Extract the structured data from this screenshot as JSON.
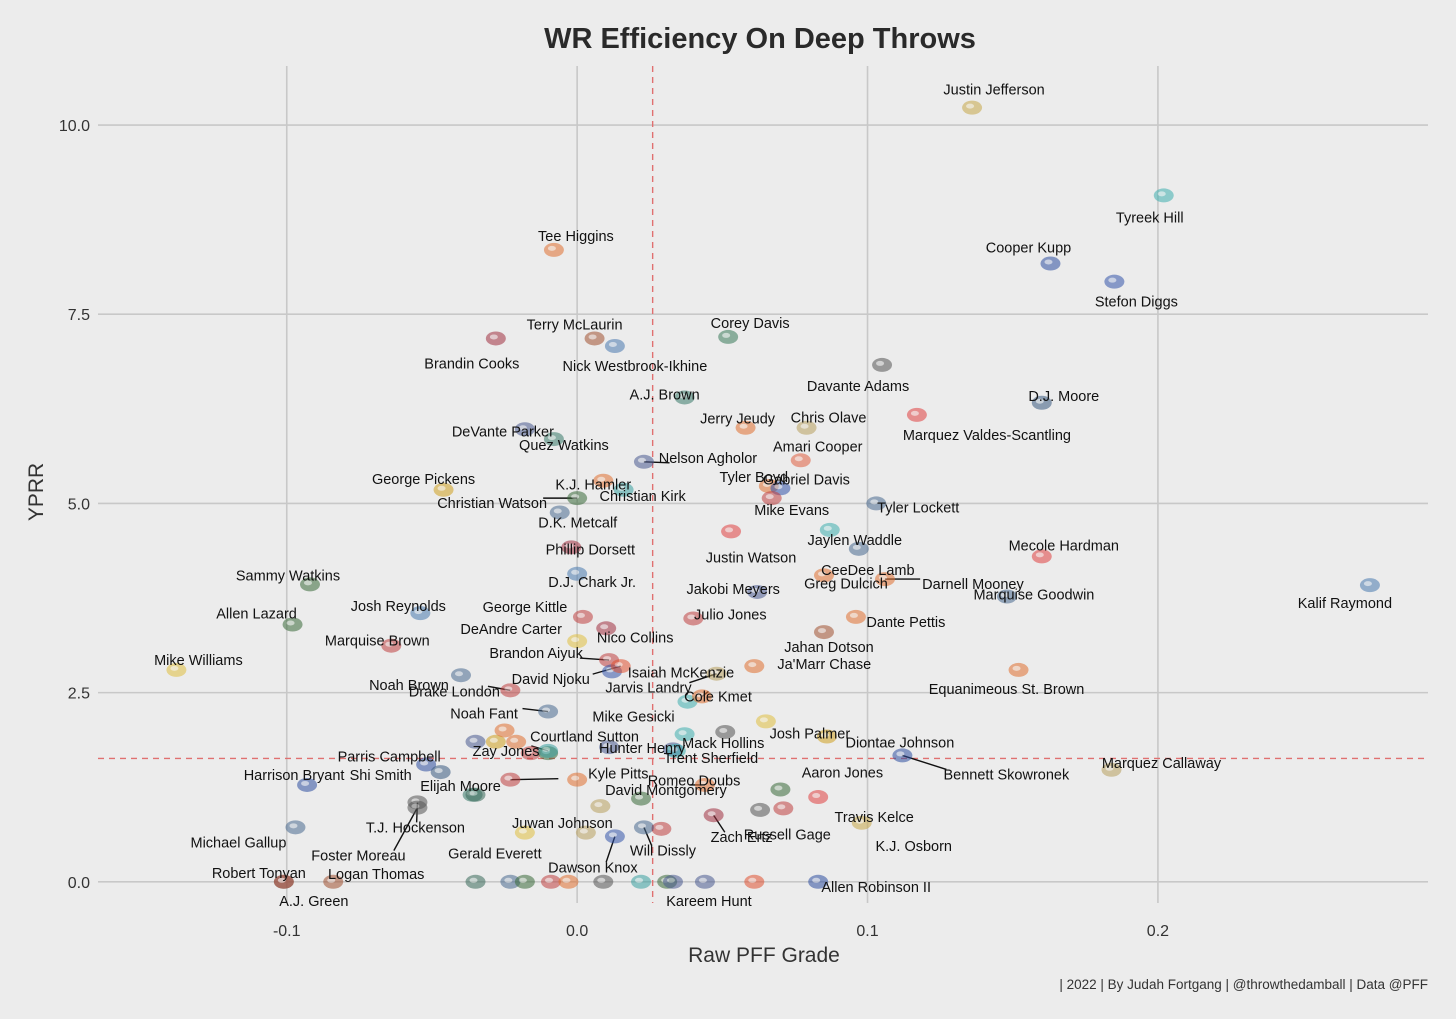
{
  "chart_data": {
    "type": "scatter",
    "title": "WR Efficiency On Deep Throws",
    "xlabel": "Raw PFF Grade",
    "ylabel": "YPRR",
    "caption": "| 2022 | By Judah Fortgang | @throwthedamball | Data @PFF",
    "xlim": [
      -0.165,
      0.293
    ],
    "ylim": [
      -0.28,
      10.78
    ],
    "x_ticks": [
      -0.1,
      0.0,
      0.1,
      0.2
    ],
    "x_tick_labels": [
      "-0.1",
      "0.0",
      "0.1",
      "0.2"
    ],
    "y_ticks": [
      0.0,
      2.5,
      5.0,
      7.5,
      10.0
    ],
    "y_tick_labels": [
      "0.0",
      "2.5",
      "5.0",
      "7.5",
      "10.0"
    ],
    "grid": true,
    "ref_lines": {
      "x": 0.026,
      "y": 1.63
    },
    "points": [
      {
        "name": "Justin Jefferson",
        "x": 0.136,
        "y": 10.23,
        "color": "#c7a84a"
      },
      {
        "name": "Tyreek Hill",
        "x": 0.202,
        "y": 9.07,
        "color": "#3fb0b0"
      },
      {
        "name": "Cooper Kupp",
        "x": 0.163,
        "y": 8.17,
        "color": "#2f4fa0"
      },
      {
        "name": "Stefon Diggs",
        "x": 0.185,
        "y": 7.93,
        "color": "#3355aa"
      },
      {
        "name": "Tee Higgins",
        "x": -0.008,
        "y": 8.35,
        "color": "#e07030"
      },
      {
        "name": "Terry McLaurin",
        "x": 0.006,
        "y": 7.18,
        "color": "#a05030"
      },
      {
        "name": "Brandin Cooks",
        "x": -0.028,
        "y": 7.18,
        "color": "#a03040"
      },
      {
        "name": "Nick Westbrook-Ikhine",
        "x": 0.013,
        "y": 7.08,
        "color": "#4a78b0"
      },
      {
        "name": "Corey Davis",
        "x": 0.052,
        "y": 7.2,
        "color": "#3a7a5a"
      },
      {
        "name": "Davante Adams",
        "x": 0.105,
        "y": 6.83,
        "color": "#555555"
      },
      {
        "name": "A.J. Brown",
        "x": 0.037,
        "y": 6.4,
        "color": "#3a7a6a"
      },
      {
        "name": "D.J. Moore",
        "x": 0.16,
        "y": 6.33,
        "color": "#3a5a80"
      },
      {
        "name": "Jerry Jeudy",
        "x": 0.058,
        "y": 6.0,
        "color": "#e07030"
      },
      {
        "name": "Chris Olave",
        "x": 0.079,
        "y": 6.0,
        "color": "#b8a060"
      },
      {
        "name": "Marquez Valdes-Scantling",
        "x": 0.117,
        "y": 6.17,
        "color": "#e04040"
      },
      {
        "name": "DeVante Parker",
        "x": -0.018,
        "y": 5.98,
        "color": "#4a5a90"
      },
      {
        "name": "Quez Watkins",
        "x": -0.008,
        "y": 5.85,
        "color": "#3a7a6a"
      },
      {
        "name": "Nelson Agholor",
        "x": 0.023,
        "y": 5.55,
        "color": "#4a5a90"
      },
      {
        "name": "Amari Cooper",
        "x": 0.077,
        "y": 5.57,
        "color": "#e06040"
      },
      {
        "name": "K.J. Hamler",
        "x": 0.009,
        "y": 5.3,
        "color": "#e07030"
      },
      {
        "name": "Christian Kirk",
        "x": 0.016,
        "y": 5.18,
        "color": "#3aa0a0"
      },
      {
        "name": "Tyler Boyd",
        "x": 0.066,
        "y": 5.23,
        "color": "#e07030"
      },
      {
        "name": "Gabriel Davis",
        "x": 0.07,
        "y": 5.2,
        "color": "#3355aa"
      },
      {
        "name": "Mike Evans",
        "x": 0.067,
        "y": 5.07,
        "color": "#c04040"
      },
      {
        "name": "George Pickens",
        "x": -0.046,
        "y": 5.18,
        "color": "#d0a020"
      },
      {
        "name": "Christian Watson",
        "x": 0.0,
        "y": 5.07,
        "color": "#3a6a3a"
      },
      {
        "name": "Tyler Lockett",
        "x": 0.103,
        "y": 5.0,
        "color": "#4a6a90"
      },
      {
        "name": "D.K. Metcalf",
        "x": -0.006,
        "y": 4.88,
        "color": "#4a6a90"
      },
      {
        "name": "Jaylen Waddle",
        "x": 0.087,
        "y": 4.65,
        "color": "#3fb0b0"
      },
      {
        "name": "Justin Watson",
        "x": 0.053,
        "y": 4.63,
        "color": "#e04040"
      },
      {
        "name": "Phillip Dorsett",
        "x": -0.002,
        "y": 4.42,
        "color": "#a03040"
      },
      {
        "name": "Mecole Hardman",
        "x": 0.16,
        "y": 4.3,
        "color": "#e04040"
      },
      {
        "name": "CeeDee Lamb",
        "x": 0.097,
        "y": 4.4,
        "color": "#4a6a90"
      },
      {
        "name": "Darnell Mooney",
        "x": 0.106,
        "y": 4.0,
        "color": "#e07030"
      },
      {
        "name": "D.J. Chark Jr.",
        "x": 0.0,
        "y": 4.07,
        "color": "#4a7ab0"
      },
      {
        "name": "Jakobi Meyers",
        "x": 0.062,
        "y": 3.83,
        "color": "#4a5a90"
      },
      {
        "name": "Greg Dulcich",
        "x": 0.085,
        "y": 4.05,
        "color": "#e07030"
      },
      {
        "name": "Sammy Watkins",
        "x": -0.092,
        "y": 3.93,
        "color": "#3a6a3a"
      },
      {
        "name": "Kalif Raymond",
        "x": 0.273,
        "y": 3.92,
        "color": "#4a7ab0"
      },
      {
        "name": "Josh Reynolds",
        "x": -0.054,
        "y": 3.55,
        "color": "#4a7ab0"
      },
      {
        "name": "Allen Lazard",
        "x": -0.098,
        "y": 3.4,
        "color": "#3a6a3a"
      },
      {
        "name": "George Kittle",
        "x": 0.002,
        "y": 3.5,
        "color": "#c04040"
      },
      {
        "name": "Nico Collins",
        "x": 0.01,
        "y": 3.35,
        "color": "#a03040"
      },
      {
        "name": "Julio Jones",
        "x": 0.04,
        "y": 3.48,
        "color": "#c04040"
      },
      {
        "name": "Marquise Goodwin",
        "x": 0.148,
        "y": 3.77,
        "color": "#4a6a90"
      },
      {
        "name": "Dante Pettis",
        "x": 0.096,
        "y": 3.5,
        "color": "#e07030"
      },
      {
        "name": "Marquise Brown",
        "x": -0.064,
        "y": 3.12,
        "color": "#c04040"
      },
      {
        "name": "DeAndre Carter",
        "x": 0.0,
        "y": 3.18,
        "color": "#e0c040"
      },
      {
        "name": "Jahan Dotson",
        "x": 0.085,
        "y": 3.3,
        "color": "#a05030"
      },
      {
        "name": "Mike Williams",
        "x": -0.138,
        "y": 2.8,
        "color": "#e0c040"
      },
      {
        "name": "Noah Brown",
        "x": -0.04,
        "y": 2.73,
        "color": "#4a6a90"
      },
      {
        "name": "Brandon Aiyuk",
        "x": 0.011,
        "y": 2.93,
        "color": "#c04040"
      },
      {
        "name": "Isaiah McKenzie",
        "x": 0.012,
        "y": 2.78,
        "color": "#3355aa"
      },
      {
        "name": "Ja'Marr Chase",
        "x": 0.061,
        "y": 2.85,
        "color": "#e07030"
      },
      {
        "name": "David Njoku",
        "x": 0.015,
        "y": 2.85,
        "color": "#e05030"
      },
      {
        "name": "Jarvis Landry",
        "x": 0.048,
        "y": 2.75,
        "color": "#b8a060"
      },
      {
        "name": "Drake London",
        "x": -0.023,
        "y": 2.53,
        "color": "#c04040"
      },
      {
        "name": "Equanimeous St. Brown",
        "x": 0.152,
        "y": 2.8,
        "color": "#e07030"
      },
      {
        "name": "Mike Gesicki",
        "x": 0.038,
        "y": 2.38,
        "color": "#3fb0b0"
      },
      {
        "name": "Cole Kmet",
        "x": 0.043,
        "y": 2.45,
        "color": "#e07030"
      },
      {
        "name": "Noah Fant",
        "x": -0.01,
        "y": 2.25,
        "color": "#4a6a90"
      },
      {
        "name": "Josh Palmer",
        "x": 0.065,
        "y": 2.12,
        "color": "#e0c040"
      },
      {
        "name": "Courtland Sutton",
        "x": -0.025,
        "y": 2.0,
        "color": "#e07030"
      },
      {
        "name": "Mack Hollins",
        "x": 0.051,
        "y": 1.98,
        "color": "#555555"
      },
      {
        "name": "Diontae Johnson",
        "x": 0.086,
        "y": 1.92,
        "color": "#d0a020"
      },
      {
        "name": "Trent Sherfield",
        "x": 0.034,
        "y": 1.73,
        "color": "#3fb0b0"
      },
      {
        "name": "Zay Jones",
        "x": -0.01,
        "y": 1.73,
        "color": "#3aa0a0"
      },
      {
        "name": "Hunter Henry",
        "x": 0.011,
        "y": 1.78,
        "color": "#4a5a90"
      },
      {
        "name": "Bennett Skowronek",
        "x": 0.112,
        "y": 1.67,
        "color": "#2f4fa0"
      },
      {
        "name": "Marquez Callaway",
        "x": 0.184,
        "y": 1.48,
        "color": "#b8a060"
      },
      {
        "name": "Parris Campbell",
        "x": -0.052,
        "y": 1.55,
        "color": "#2f4fa0"
      },
      {
        "name": "Shi Smith",
        "x": -0.047,
        "y": 1.45,
        "color": "#3a5a80"
      },
      {
        "name": "Elijah Moore",
        "x": -0.035,
        "y": 1.15,
        "color": "#3a6a5a"
      },
      {
        "name": "Harrison Bryant",
        "x": -0.093,
        "y": 1.28,
        "color": "#2f4fa0"
      },
      {
        "name": "David Montgomery",
        "x": 0.044,
        "y": 1.28,
        "color": "#e07030"
      },
      {
        "name": "Aaron Jones",
        "x": 0.07,
        "y": 1.22,
        "color": "#3a6a3a"
      },
      {
        "name": "Kyle Pitts",
        "x": -0.023,
        "y": 1.35,
        "color": "#c04040"
      },
      {
        "name": "Juwan Johnson",
        "x": 0.008,
        "y": 1.0,
        "color": "#b8a060"
      },
      {
        "name": "Romeo Doubs",
        "x": 0.022,
        "y": 1.1,
        "color": "#3a6a3a"
      },
      {
        "name": "Travis Kelce",
        "x": 0.083,
        "y": 1.12,
        "color": "#e04040"
      },
      {
        "name": "T.J. Hockenson",
        "x": -0.055,
        "y": 1.05,
        "color": "#555555"
      },
      {
        "name": "Foster Moreau",
        "x": -0.055,
        "y": 0.98,
        "color": "#555555"
      },
      {
        "name": "Gerald Everett",
        "x": -0.018,
        "y": 0.65,
        "color": "#e0c040"
      },
      {
        "name": "Russell Gage",
        "x": 0.071,
        "y": 0.97,
        "color": "#c04040"
      },
      {
        "name": "K.J. Osborn",
        "x": 0.098,
        "y": 0.78,
        "color": "#c7a84a"
      },
      {
        "name": "Michael Gallup",
        "x": -0.097,
        "y": 0.72,
        "color": "#4a6a90"
      },
      {
        "name": "Will Dissly",
        "x": 0.023,
        "y": 0.72,
        "color": "#4a6a90"
      },
      {
        "name": "Zach Ertz",
        "x": 0.047,
        "y": 0.88,
        "color": "#a03040"
      },
      {
        "name": "Dawson Knox",
        "x": 0.013,
        "y": 0.6,
        "color": "#3355aa"
      },
      {
        "name": "Robert Tonyan",
        "x": -0.101,
        "y": 0.0,
        "color": "#3a6a3a"
      },
      {
        "name": "Logan Thomas",
        "x": -0.084,
        "y": 0.0,
        "color": "#a05030"
      },
      {
        "name": "A.J. Green",
        "x": -0.101,
        "y": 0.0,
        "color": "#c04040"
      },
      {
        "name": "Kareem Hunt",
        "x": 0.033,
        "y": 0.0,
        "color": "#4a5a90"
      },
      {
        "name": "Allen Robinson II",
        "x": 0.083,
        "y": 0.0,
        "color": "#2f4fa0"
      }
    ],
    "leader_lines": [
      "Nelson Agholor",
      "Christian Watson",
      "Brandon Aiyuk",
      "David Njoku",
      "Drake London",
      "Jarvis Landry",
      "Noah Fant",
      "Cole Kmet",
      "Zay Jones",
      "David Montgomery",
      "Kyle Pitts",
      "T.J. Hockenson",
      "Foster Moreau",
      "Dawson Knox",
      "Zach Ertz",
      "Will Dissly",
      "Bennett Skowronek",
      "Darnell Mooney"
    ],
    "extra_markers": [
      {
        "x": -0.035,
        "y": 0.0,
        "color": "#3a6a5a"
      },
      {
        "x": -0.023,
        "y": 0.0,
        "color": "#4a6a90"
      },
      {
        "x": -0.018,
        "y": 0.0,
        "color": "#3a6a3a"
      },
      {
        "x": -0.009,
        "y": 0.0,
        "color": "#c04040"
      },
      {
        "x": -0.003,
        "y": 0.0,
        "color": "#e07030"
      },
      {
        "x": 0.009,
        "y": 0.0,
        "color": "#555555"
      },
      {
        "x": 0.022,
        "y": 0.0,
        "color": "#3aa0a0"
      },
      {
        "x": 0.061,
        "y": 0.0,
        "color": "#e05030"
      },
      {
        "x": -0.035,
        "y": 1.85,
        "color": "#4a5a90"
      },
      {
        "x": -0.028,
        "y": 1.85,
        "color": "#d0a020"
      },
      {
        "x": -0.021,
        "y": 1.85,
        "color": "#e07030"
      },
      {
        "x": -0.016,
        "y": 1.7,
        "color": "#c04040"
      },
      {
        "x": -0.01,
        "y": 1.7,
        "color": "#3a6a3a"
      },
      {
        "x": 0.033,
        "y": 1.75,
        "color": "#4a5a90"
      },
      {
        "x": 0.037,
        "y": 1.95,
        "color": "#3fb0b0"
      },
      {
        "x": 0.0,
        "y": 1.35,
        "color": "#e07030"
      },
      {
        "x": 0.063,
        "y": 0.95,
        "color": "#555555"
      },
      {
        "x": 0.029,
        "y": 0.7,
        "color": "#c04040"
      },
      {
        "x": 0.003,
        "y": 0.65,
        "color": "#b8a060"
      },
      {
        "x": -0.036,
        "y": 1.15,
        "color": "#3a7a6a"
      },
      {
        "x": 0.044,
        "y": 0.0,
        "color": "#4a5a90"
      },
      {
        "x": 0.031,
        "y": 0.0,
        "color": "#3a6a3a"
      }
    ]
  }
}
